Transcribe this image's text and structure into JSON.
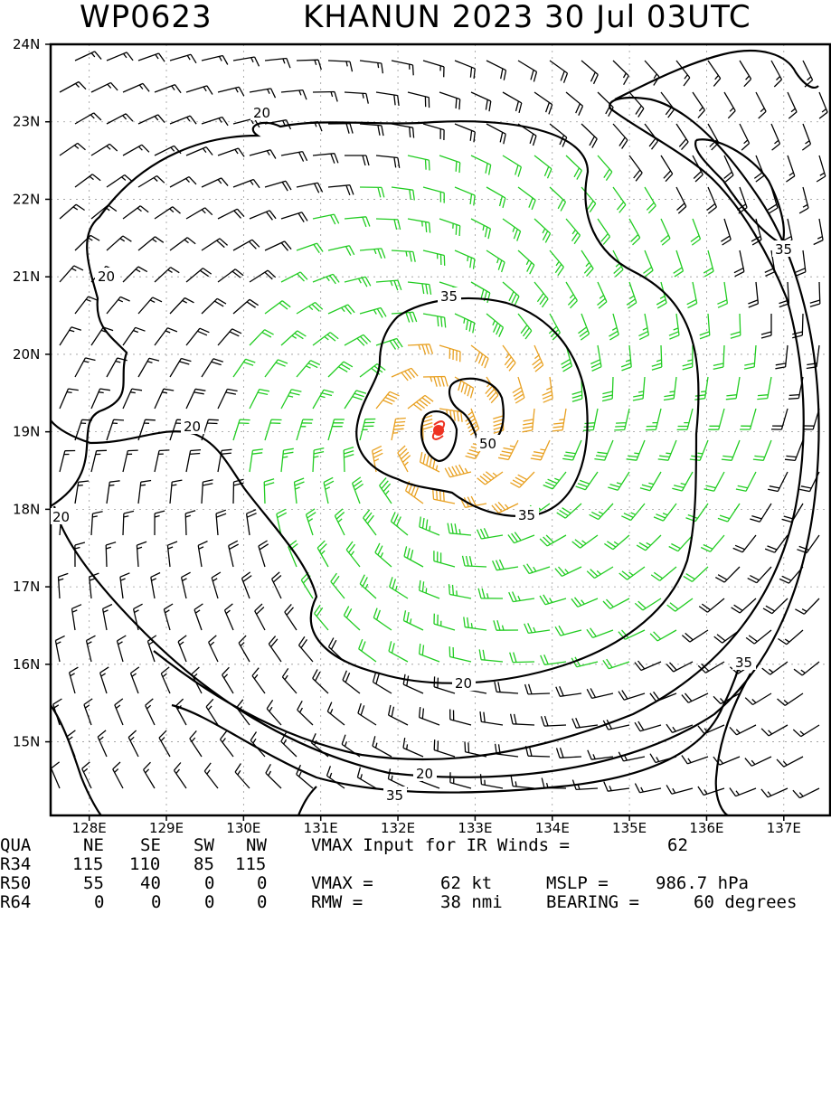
{
  "header": {
    "storm_id": "WP0623",
    "storm_info": "KHANUN 2023 30 Jul 03UTC"
  },
  "map": {
    "lat_labels": [
      "24N",
      "23N",
      "22N",
      "21N",
      "20N",
      "19N",
      "18N",
      "17N",
      "16N",
      "15N"
    ],
    "lon_labels": [
      "128E",
      "129E",
      "130E",
      "131E",
      "132E",
      "133E",
      "134E",
      "135E",
      "136E",
      "137E"
    ],
    "contour_labels": {
      "c20_top": "20",
      "c20_left": "20",
      "c20_mid": "20",
      "c20_edge": "20",
      "c20_bottom_a": "20",
      "c20_bottom_b": "20",
      "c35_top": "35",
      "c35_right_top": "35",
      "c35_inner": "35",
      "c35_right_bottom": "35",
      "c35_bottom": "35",
      "c50": "50"
    },
    "colors": {
      "barb_black": "#000000",
      "barb_green": "#22cc22",
      "barb_orange": "#e8a020",
      "center_marker": "#ee3322",
      "contour": "#000000"
    },
    "center": {
      "lat": 19.0,
      "lon": 132.6
    }
  },
  "footer": {
    "row_quadrants": {
      "label": "QUA",
      "ne": "NE",
      "se": "SE",
      "sw": "SW",
      "nw": "NW",
      "text": "VMAX Input for IR Winds =",
      "value": "62"
    },
    "row_r34": {
      "label": "R34",
      "ne": "115",
      "se": "110",
      "sw": "85",
      "nw": "115"
    },
    "row_r50": {
      "label": "R50",
      "ne": "55",
      "se": "40",
      "sw": "0",
      "nw": "0",
      "text": "VMAX =",
      "vmax": "62 kt",
      "mslp_text": "MSLP =",
      "mslp": "986.7 hPa"
    },
    "row_r64": {
      "label": "R64",
      "ne": "0",
      "se": "0",
      "sw": "0",
      "nw": "0",
      "text": "RMW =",
      "rmw": "38 nmi",
      "bearing_text": "BEARING =",
      "bearing": "60 degrees"
    }
  }
}
